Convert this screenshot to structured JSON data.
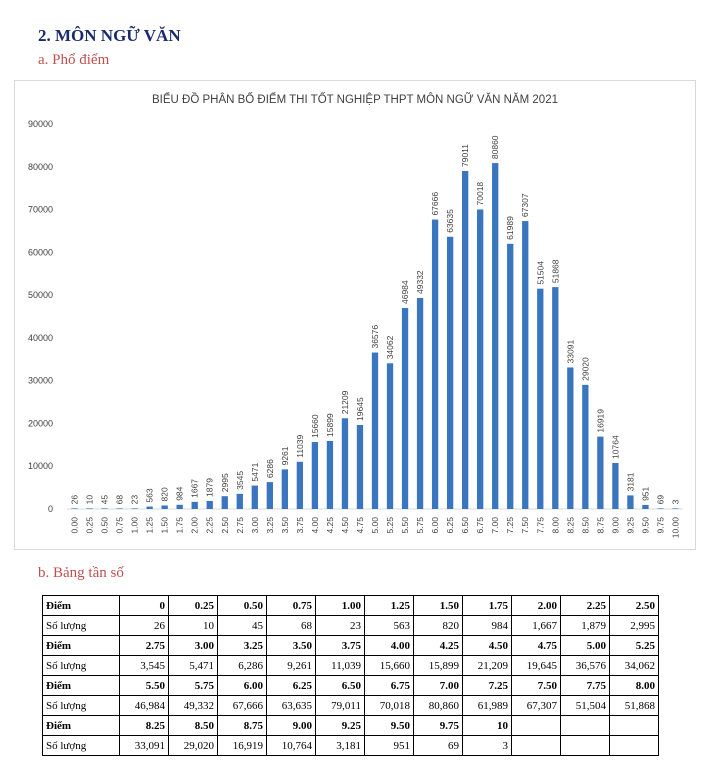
{
  "heading": "2.  MÔN NGỮ VĂN",
  "sub_a": "a.  Phổ điểm",
  "sub_b": "b.  Bảng tần số",
  "chart_data": {
    "type": "bar",
    "title": "BIỂU ĐỒ PHÂN BỐ ĐIỂM THI TỐT NGHIỆP THPT MÔN NGỮ VĂN NĂM 2021",
    "xlabel": "",
    "ylabel": "",
    "ylim": [
      0,
      90000
    ],
    "yticks": [
      "0",
      "10000",
      "20000",
      "30000",
      "40000",
      "50000",
      "60000",
      "70000",
      "80000",
      "90000"
    ],
    "grid": false,
    "bar_color": "#3a76bf",
    "categories": [
      "0.00",
      "0.25",
      "0.50",
      "0.75",
      "1.00",
      "1.25",
      "1.50",
      "1.75",
      "2.00",
      "2.25",
      "2.50",
      "2.75",
      "3.00",
      "3.25",
      "3.50",
      "3.75",
      "4.00",
      "4.25",
      "4.50",
      "4.75",
      "5.00",
      "5.25",
      "5.50",
      "5.75",
      "6.00",
      "6.25",
      "6.50",
      "6.75",
      "7.00",
      "7.25",
      "7.50",
      "7.75",
      "8.00",
      "8.25",
      "8.50",
      "8.75",
      "9.00",
      "9.25",
      "9.50",
      "9.75",
      "10.00"
    ],
    "values": [
      26,
      10,
      45,
      68,
      23,
      563,
      820,
      984,
      1667,
      1879,
      2995,
      3545,
      5471,
      6286,
      9261,
      11039,
      15660,
      15899,
      21209,
      19645,
      36576,
      34062,
      46984,
      49332,
      67666,
      63635,
      79011,
      70018,
      80860,
      61989,
      67307,
      51504,
      51868,
      33091,
      29020,
      16919,
      10764,
      3181,
      951,
      69,
      3
    ]
  },
  "table": {
    "label_score": "Điểm",
    "label_count": "Số lượng",
    "rows": [
      {
        "scores": [
          "0",
          "0.25",
          "0.50",
          "0.75",
          "1.00",
          "1.25",
          "1.50",
          "1.75",
          "2.00",
          "2.25",
          "2.50"
        ],
        "counts": [
          "26",
          "10",
          "45",
          "68",
          "23",
          "563",
          "820",
          "984",
          "1,667",
          "1,879",
          "2,995"
        ]
      },
      {
        "scores": [
          "2.75",
          "3.00",
          "3.25",
          "3.50",
          "3.75",
          "4.00",
          "4.25",
          "4.50",
          "4.75",
          "5.00",
          "5.25"
        ],
        "counts": [
          "3,545",
          "5,471",
          "6,286",
          "9,261",
          "11,039",
          "15,660",
          "15,899",
          "21,209",
          "19,645",
          "36,576",
          "34,062"
        ]
      },
      {
        "scores": [
          "5.50",
          "5.75",
          "6.00",
          "6.25",
          "6.50",
          "6.75",
          "7.00",
          "7.25",
          "7.50",
          "7.75",
          "8.00"
        ],
        "counts": [
          "46,984",
          "49,332",
          "67,666",
          "63,635",
          "79,011",
          "70,018",
          "80,860",
          "61,989",
          "67,307",
          "51,504",
          "51,868"
        ]
      },
      {
        "scores": [
          "8.25",
          "8.50",
          "8.75",
          "9.00",
          "9.25",
          "9.50",
          "9.75",
          "10",
          "",
          "",
          ""
        ],
        "counts": [
          "33,091",
          "29,020",
          "16,919",
          "10,764",
          "3,181",
          "951",
          "69",
          "3",
          "",
          "",
          ""
        ]
      }
    ]
  }
}
